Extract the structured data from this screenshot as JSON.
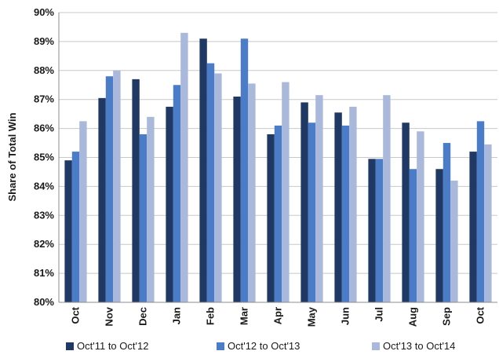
{
  "chart_data": {
    "type": "bar",
    "title": "",
    "xlabel": "",
    "ylabel": "Share of Total Win",
    "ylim": [
      80,
      90
    ],
    "ytick_step": 1,
    "ytick_suffix": "%",
    "grid": true,
    "legend_position": "bottom",
    "categories": [
      "Oct",
      "Nov",
      "Dec",
      "Jan",
      "Feb",
      "Mar",
      "Apr",
      "May",
      "Jun",
      "Jul",
      "Aug",
      "Sep",
      "Oct"
    ],
    "series": [
      {
        "name": "Oct'11 to Oct'12",
        "color": "#1f3864",
        "values": [
          84.9,
          87.05,
          87.7,
          86.75,
          89.1,
          87.1,
          85.8,
          86.9,
          86.55,
          84.95,
          86.2,
          84.6,
          85.2
        ]
      },
      {
        "name": "Oct'12 to Oct'13",
        "color": "#4a7cc7",
        "values": [
          85.2,
          87.8,
          85.8,
          87.5,
          88.25,
          89.1,
          86.1,
          86.2,
          86.1,
          84.95,
          84.6,
          85.5,
          86.25
        ]
      },
      {
        "name": "Oct'13 to Oct'14",
        "color": "#a9b8db",
        "values": [
          86.25,
          88.0,
          86.4,
          89.3,
          87.9,
          87.55,
          87.6,
          87.15,
          86.75,
          87.15,
          85.9,
          84.2,
          85.45
        ]
      }
    ]
  }
}
